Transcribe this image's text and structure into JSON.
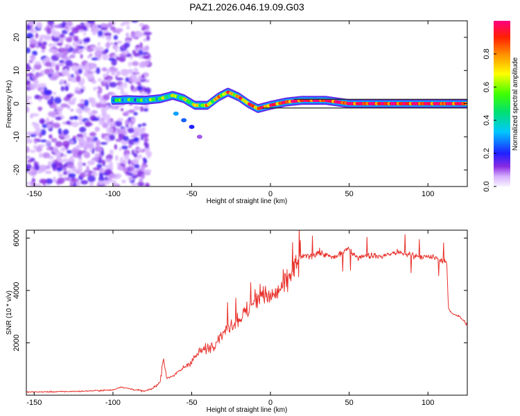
{
  "title": "PAZ1.2026.046.19.09.G03",
  "colors": {
    "snr_line": "#e8302a",
    "frame": "#000000"
  },
  "chart_data": [
    {
      "type": "heatmap",
      "name": "spectrogram",
      "xlabel": "Height of straight line (km)",
      "ylabel": "Frequency (Hz)",
      "xlim": [
        -155,
        125
      ],
      "ylim": [
        -25,
        25
      ],
      "xticks": [
        -150,
        -100,
        -50,
        0,
        50,
        100
      ],
      "yticks": [
        -20,
        -10,
        0,
        10,
        20
      ],
      "noise_region": {
        "x_from": -155,
        "x_to": -85,
        "note": "scattered low-amplitude purple blobs"
      },
      "signal_track": [
        {
          "x": -100,
          "y": 1.0,
          "amp": 0.45
        },
        {
          "x": -90,
          "y": 1.2,
          "amp": 0.4
        },
        {
          "x": -80,
          "y": 1.0,
          "amp": 0.42
        },
        {
          "x": -70,
          "y": 1.5,
          "amp": 0.5
        },
        {
          "x": -62,
          "y": 2.5,
          "amp": 0.55
        },
        {
          "x": -55,
          "y": 1.5,
          "amp": 0.55
        },
        {
          "x": -48,
          "y": -0.5,
          "amp": 0.6
        },
        {
          "x": -40,
          "y": -0.5,
          "amp": 0.65
        },
        {
          "x": -33,
          "y": 2.0,
          "amp": 0.7
        },
        {
          "x": -27,
          "y": 3.5,
          "amp": 0.75
        },
        {
          "x": -20,
          "y": 2.0,
          "amp": 0.75
        },
        {
          "x": -14,
          "y": 0.0,
          "amp": 0.8
        },
        {
          "x": -8,
          "y": -1.5,
          "amp": 0.85
        },
        {
          "x": 0,
          "y": -0.5,
          "amp": 0.85
        },
        {
          "x": 10,
          "y": 0.5,
          "amp": 0.9
        },
        {
          "x": 20,
          "y": 1.0,
          "amp": 0.95
        },
        {
          "x": 35,
          "y": 1.0,
          "amp": 0.95
        },
        {
          "x": 50,
          "y": 0.0,
          "amp": 0.95
        },
        {
          "x": 70,
          "y": 0.0,
          "amp": 0.95
        },
        {
          "x": 90,
          "y": 0.0,
          "amp": 0.95
        },
        {
          "x": 110,
          "y": 0.0,
          "amp": 0.95
        },
        {
          "x": 125,
          "y": 0.0,
          "amp": 0.95
        }
      ],
      "secondary_track": [
        {
          "x": -60,
          "y": -3,
          "amp": 0.3
        },
        {
          "x": -55,
          "y": -5,
          "amp": 0.25
        },
        {
          "x": -50,
          "y": -7,
          "amp": 0.2
        },
        {
          "x": -45,
          "y": -10,
          "amp": 0.1
        }
      ],
      "colorbar": {
        "label": "Normalized spectral amplitude",
        "range": [
          0,
          1
        ],
        "ticks": [
          "0.0",
          "0.2",
          "0.4",
          "0.6",
          "0.8"
        ]
      }
    },
    {
      "type": "line",
      "name": "snr",
      "xlabel": "Height of straight line (km)",
      "ylabel": "SNR (10 * v/v)",
      "xlim": [
        -155,
        125
      ],
      "ylim": [
        0,
        6300
      ],
      "xticks": [
        -150,
        -100,
        -50,
        0,
        50,
        100
      ],
      "yticks": [
        2000,
        4000,
        6000
      ],
      "series": [
        {
          "name": "SNR",
          "x": [
            -155,
            -140,
            -120,
            -100,
            -95,
            -90,
            -80,
            -75,
            -70,
            -68,
            -66,
            -60,
            -50,
            -45,
            -40,
            -35,
            -30,
            -25,
            -20,
            -15,
            -10,
            -5,
            0,
            5,
            10,
            15,
            20,
            25,
            30,
            40,
            50,
            55,
            60,
            70,
            80,
            90,
            100,
            105,
            110,
            112,
            113,
            115,
            120,
            125
          ],
          "values": [
            120,
            130,
            150,
            200,
            320,
            250,
            150,
            250,
            500,
            1500,
            650,
            800,
            1300,
            1650,
            1800,
            2000,
            2400,
            2700,
            2900,
            3200,
            3550,
            3900,
            3700,
            3950,
            4350,
            4800,
            5300,
            5300,
            5450,
            5250,
            5600,
            5250,
            5350,
            5300,
            5450,
            5350,
            5250,
            5250,
            5150,
            5000,
            3300,
            3150,
            3000,
            2700
          ]
        }
      ]
    }
  ]
}
